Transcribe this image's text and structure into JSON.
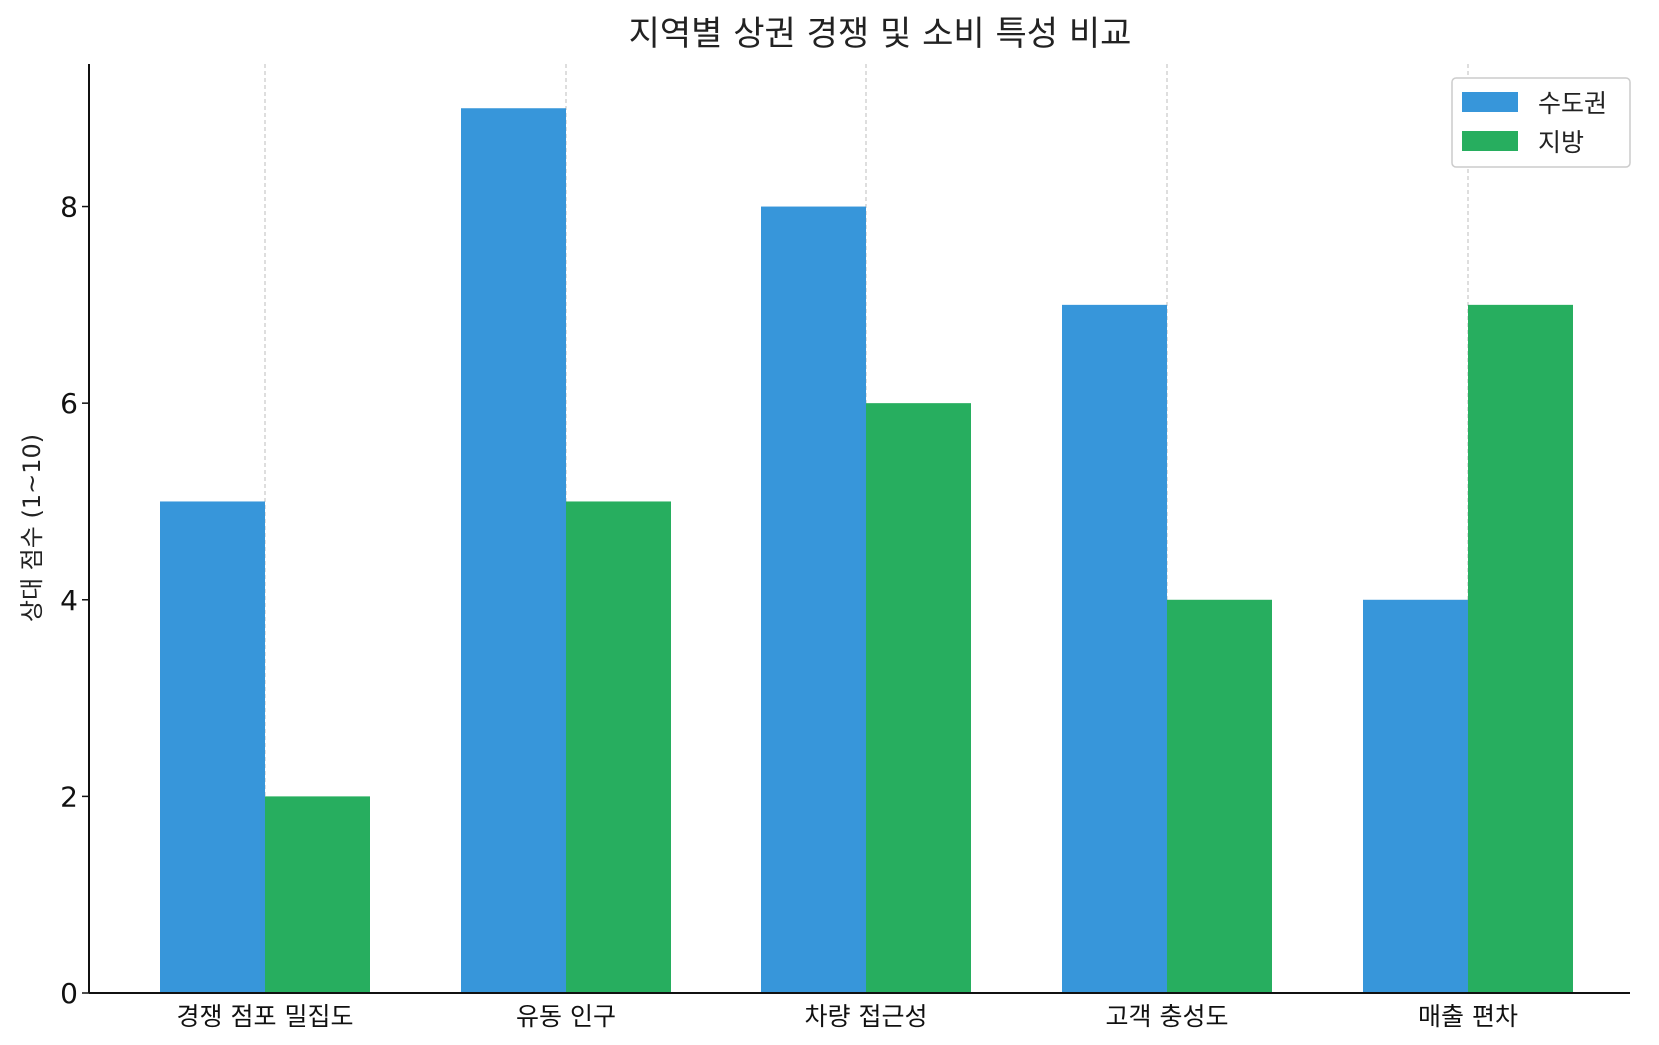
{
  "chart_data": {
    "type": "bar",
    "title": "지역별 상권 경쟁 및 소비 특성 비교",
    "xlabel": "",
    "ylabel": "상대 점수 (1~10)",
    "categories": [
      "경쟁 점포 밀집도",
      "유동 인구",
      "차량 접근성",
      "고객 충성도",
      "매출 편차"
    ],
    "series": [
      {
        "name": "수도권",
        "color": "#3796da",
        "values": [
          5,
          9,
          8,
          7,
          4
        ]
      },
      {
        "name": "지방",
        "color": "#27ae5f",
        "values": [
          2,
          5,
          6,
          4,
          7
        ]
      }
    ],
    "ylim": [
      0,
      9.45
    ],
    "yticks": [
      0,
      2,
      4,
      6,
      8
    ],
    "grid": "x-dashed",
    "legend_position": "top-right"
  }
}
